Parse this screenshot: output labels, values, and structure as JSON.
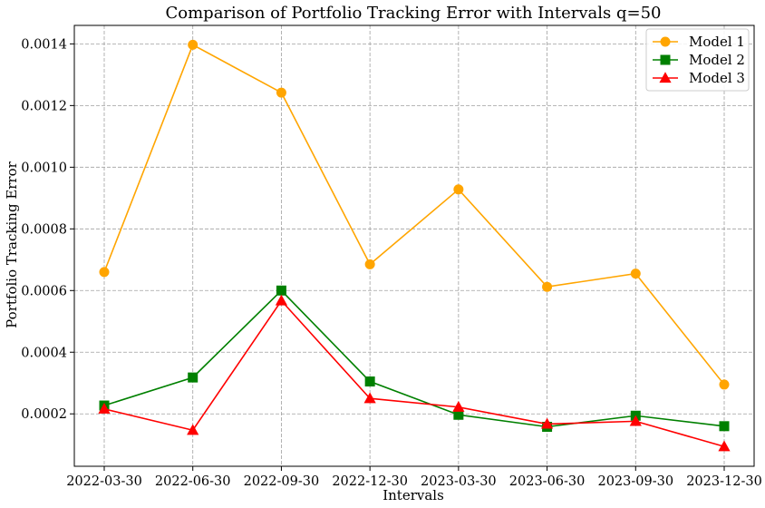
{
  "chart_data": {
    "type": "line",
    "title": "Comparison of Portfolio Tracking Error with Intervals q=50",
    "xlabel": "Intervals",
    "ylabel": "Portfolio Tracking Error",
    "categories": [
      "2022-03-30",
      "2022-06-30",
      "2022-09-30",
      "2022-12-30",
      "2023-03-30",
      "2023-06-30",
      "2023-09-30",
      "2023-12-30"
    ],
    "ylim": [
      3e-05,
      0.00146
    ],
    "yticks": [
      0.0002,
      0.0004,
      0.0006,
      0.0008,
      0.001,
      0.0012,
      0.0014
    ],
    "ytick_labels": [
      "0.0002",
      "0.0004",
      "0.0006",
      "0.0008",
      "0.0010",
      "0.0012",
      "0.0014"
    ],
    "grid": true,
    "legend_position": "top-right",
    "series": [
      {
        "name": "Model 1",
        "color": "#ffa500",
        "marker": "circle",
        "values": [
          0.00066,
          0.001397,
          0.001242,
          0.000685,
          0.000928,
          0.000612,
          0.000655,
          0.000295
        ]
      },
      {
        "name": "Model 2",
        "color": "#008000",
        "marker": "square",
        "values": [
          0.000227,
          0.000318,
          0.0006,
          0.000305,
          0.000197,
          0.000158,
          0.000194,
          0.00016
        ]
      },
      {
        "name": "Model 3",
        "color": "#ff0000",
        "marker": "triangle",
        "values": [
          0.000216,
          0.000147,
          0.000567,
          0.00025,
          0.000222,
          0.000167,
          0.000176,
          9.4e-05
        ]
      }
    ]
  }
}
